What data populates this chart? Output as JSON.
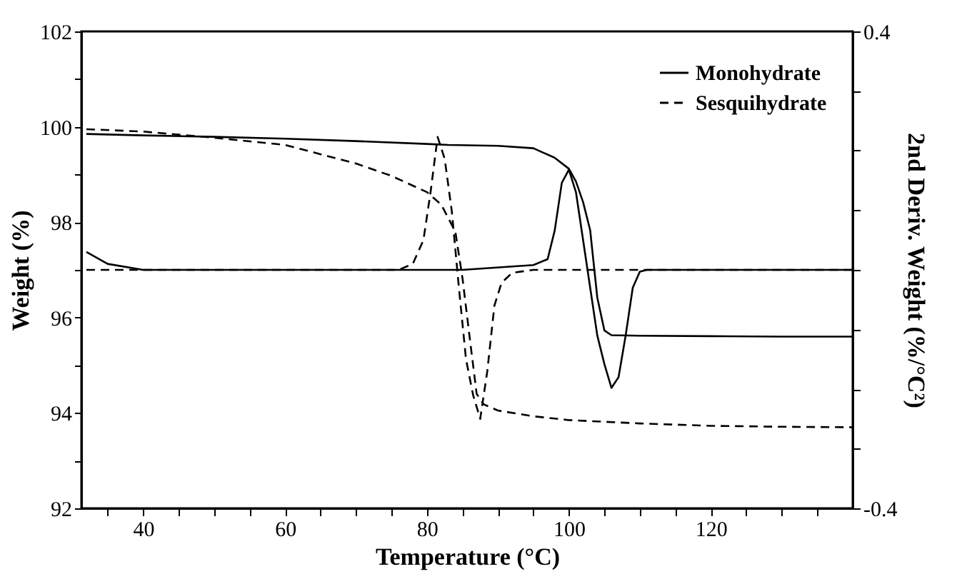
{
  "chart_data": {
    "type": "line",
    "xlabel": "Temperature (°C)",
    "ylabel": "Weight (%)",
    "y2label": "2nd Deriv. Weight (%/°C²)",
    "xlim": [
      31.3,
      140
    ],
    "xticks": [
      {
        "value": 35,
        "label": null
      },
      40,
      {
        "value": 45,
        "label": null
      },
      {
        "value": 50,
        "label": null
      },
      {
        "value": 55,
        "label": null
      },
      60,
      {
        "value": 65,
        "label": null
      },
      {
        "value": 70,
        "label": null
      },
      {
        "value": 75,
        "label": null
      },
      80,
      {
        "value": 85,
        "label": null
      },
      {
        "value": 90,
        "label": null
      },
      {
        "value": 95,
        "label": null
      },
      100,
      {
        "value": 105,
        "label": null
      },
      {
        "value": 110,
        "label": null
      },
      {
        "value": 115,
        "label": null
      },
      120,
      {
        "value": 125,
        "label": null
      },
      {
        "value": 130,
        "label": null
      },
      {
        "value": 135,
        "label": null
      }
    ],
    "ylim": [
      92,
      102
    ],
    "yticks": [
      92,
      {
        "value": 93,
        "label": null
      },
      94,
      {
        "value": 95,
        "label": null
      },
      96,
      {
        "value": 97,
        "label": null
      },
      98,
      {
        "value": 99,
        "label": null
      },
      100,
      {
        "value": 101,
        "label": null
      },
      102
    ],
    "y2lim": [
      -0.4,
      0.4
    ],
    "y2ticks": [
      -0.4,
      {
        "value": -0.3,
        "label": null
      },
      {
        "value": -0.2,
        "label": null
      },
      {
        "value": -0.1,
        "label": null
      },
      {
        "value": 0,
        "label": null
      },
      {
        "value": 0.1,
        "label": null
      },
      {
        "value": 0.2,
        "label": null
      },
      {
        "value": 0.3,
        "label": null
      },
      0.4
    ],
    "grid": false,
    "legend": "top right",
    "marker": "none",
    "series": [
      {
        "name": "Monohydrate",
        "color": "#000000",
        "line_style": "solid",
        "x": [
          32,
          40,
          50,
          60,
          70,
          80,
          83,
          90,
          95,
          98,
          100,
          101,
          102,
          103,
          104,
          105,
          106,
          110,
          120,
          130,
          140
        ],
        "values": [
          99.85,
          99.82,
          99.79,
          99.75,
          99.7,
          99.64,
          99.62,
          99.6,
          99.55,
          99.35,
          99.12,
          98.85,
          98.42,
          97.83,
          96.42,
          95.73,
          95.63,
          95.62,
          95.61,
          95.6,
          95.6
        ]
      },
      {
        "name": "Sesquihydrate",
        "color": "#000000",
        "line_style": "dashed",
        "x": [
          32,
          40,
          50,
          60,
          70,
          75,
          80,
          82,
          84,
          85,
          86,
          87,
          88,
          90,
          95,
          100,
          110,
          120,
          130,
          140
        ],
        "values": [
          99.95,
          99.9,
          99.77,
          99.62,
          99.23,
          98.97,
          98.63,
          98.37,
          97.8,
          96.83,
          95.6,
          94.4,
          94.18,
          94.05,
          93.93,
          93.85,
          93.78,
          93.73,
          93.71,
          93.7
        ]
      },
      {
        "color": "#000000",
        "line_style": "solid",
        "axis": "y2",
        "x": [
          32,
          35,
          40,
          60,
          85,
          95,
          97,
          98,
          99,
          100,
          101,
          102,
          103,
          104,
          105,
          106,
          107,
          108,
          109,
          110,
          111,
          120,
          140
        ],
        "values": [
          0.03,
          0.01,
          0,
          0,
          0,
          0.008,
          0.018,
          0.066,
          0.146,
          0.168,
          0.13,
          0.05,
          -0.03,
          -0.11,
          -0.158,
          -0.198,
          -0.18,
          -0.11,
          -0.03,
          -0.003,
          0,
          0,
          0
        ]
      },
      {
        "color": "#000000",
        "line_style": "dashed",
        "axis": "y2",
        "x": [
          32,
          60,
          76,
          78,
          79.5,
          80.5,
          81.5,
          82.5,
          83.5,
          84.5,
          85.5,
          86.5,
          87.5,
          88.5,
          89.5,
          90.5,
          92,
          95,
          120,
          140
        ],
        "values": [
          0,
          0,
          0,
          0.01,
          0.05,
          0.13,
          0.223,
          0.186,
          0.098,
          -0.03,
          -0.15,
          -0.21,
          -0.25,
          -0.17,
          -0.06,
          -0.022,
          -0.005,
          0,
          0,
          0
        ]
      }
    ]
  }
}
